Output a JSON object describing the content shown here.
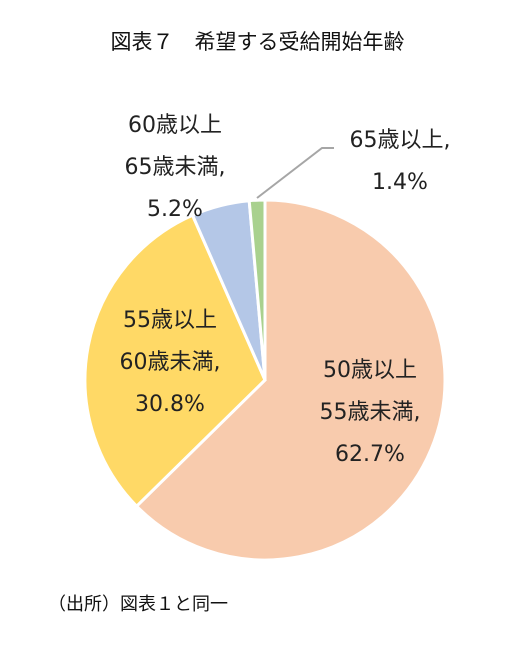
{
  "chart_data": {
    "type": "pie",
    "title": "図表７　希望する受給開始年齢",
    "categories": [
      "50歳以上\n55歳未満,",
      "55歳以上\n60歳未満,",
      "60歳以上\n65歳未満,",
      "65歳以上,"
    ],
    "values": [
      62.7,
      30.8,
      5.2,
      1.4
    ],
    "value_labels": [
      "62.7%",
      "30.8%",
      "5.2%",
      "1.4%"
    ],
    "colors": [
      "#f8cbad",
      "#ffd966",
      "#b4c7e7",
      "#a9d18e"
    ],
    "source": "（出所）図表１と同一"
  }
}
